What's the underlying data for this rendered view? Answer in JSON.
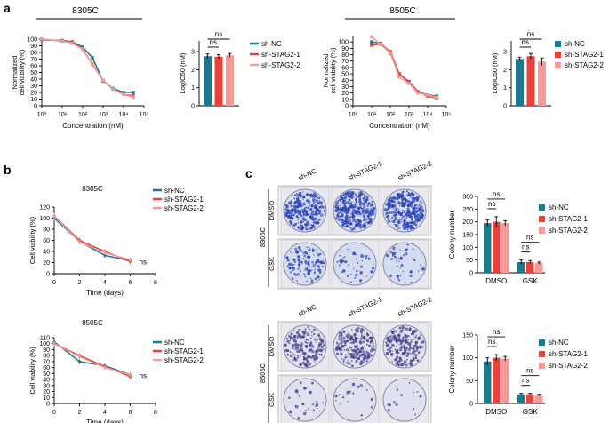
{
  "colors": {
    "nc": "#1b7a8c",
    "s1": "#e8423a",
    "s2": "#f59a96",
    "axis": "#000000",
    "plateBg": "#c9d4ec",
    "plateBg2": "#dcdcee"
  },
  "panels": {
    "a": "a",
    "b": "b",
    "c": "c"
  },
  "legend": [
    "sh-NC",
    "sh-STAG2-1",
    "sh-STAG2-2"
  ],
  "ns": "ns",
  "chart_data": [
    {
      "id": "a1",
      "type": "line",
      "title": "8305C",
      "xscale": "log",
      "xlabel": "Concentration (nM)",
      "ylabel": [
        "Normalized",
        "cell viability (%)"
      ],
      "xticks": [
        "10⁰",
        "10¹",
        "10²",
        "10³",
        "10⁴",
        "10⁵"
      ],
      "yticks": [
        0,
        10,
        20,
        30,
        40,
        50,
        60,
        70,
        80,
        90,
        100
      ],
      "ylim": [
        0,
        100
      ],
      "x": [
        1,
        10,
        30,
        100,
        300,
        1000,
        3000,
        10000,
        30000
      ],
      "series": [
        {
          "name": "sh-NC",
          "values": [
            99,
            98,
            96,
            88,
            72,
            37,
            26,
            20,
            20
          ]
        },
        {
          "name": "sh-STAG2-1",
          "values": [
            100,
            97,
            95,
            85,
            62,
            38,
            25,
            17,
            15
          ]
        },
        {
          "name": "sh-STAG2-2",
          "values": [
            100,
            97,
            94,
            85,
            63,
            38,
            25,
            17,
            13
          ]
        }
      ]
    },
    {
      "id": "a1b",
      "type": "bar",
      "ylabel": "LogIC50 (nM)",
      "yticks": [
        0,
        1,
        2,
        3
      ],
      "ylim": [
        0,
        3.6
      ],
      "categories": [
        "sh-NC",
        "sh-STAG2-1",
        "sh-STAG2-2"
      ],
      "values": [
        2.75,
        2.72,
        2.8
      ],
      "errors": [
        0.12,
        0.12,
        0.1
      ]
    },
    {
      "id": "a2",
      "type": "line",
      "title": "8505C",
      "xscale": "log",
      "xlabel": "Concentration (nM)",
      "ylabel": [
        "Normalized",
        "cell viability (%)"
      ],
      "xticks": [
        "10⁰",
        "10¹",
        "10²",
        "10³",
        "10⁴",
        "10⁵"
      ],
      "yticks": [
        0,
        10,
        20,
        30,
        40,
        50,
        60,
        70,
        80,
        90,
        100
      ],
      "ylim": [
        0,
        110
      ],
      "x": [
        10,
        30,
        100,
        300,
        1000,
        3000,
        10000,
        30000
      ],
      "series": [
        {
          "name": "sh-NC",
          "values": [
            100,
            98,
            82,
            50,
            38,
            22,
            17,
            15
          ]
        },
        {
          "name": "sh-STAG2-1",
          "values": [
            95,
            97,
            85,
            50,
            37,
            22,
            15,
            12
          ]
        },
        {
          "name": "sh-STAG2-2",
          "values": [
            108,
            96,
            83,
            45,
            35,
            20,
            17,
            13
          ]
        }
      ]
    },
    {
      "id": "a2b",
      "type": "bar",
      "ylabel": "LogIC50 (nM)",
      "yticks": [
        0,
        1,
        2,
        3
      ],
      "ylim": [
        0,
        3.6
      ],
      "categories": [
        "sh-NC",
        "sh-STAG2-1",
        "sh-STAG2-2"
      ],
      "values": [
        2.6,
        2.75,
        2.45
      ],
      "errors": [
        0.1,
        0.15,
        0.2
      ]
    },
    {
      "id": "b1",
      "type": "line",
      "title": "8305C",
      "xlabel": "Time (days)",
      "ylabel": "Cell viability (%)",
      "xticks": [
        0,
        2,
        4,
        6,
        8
      ],
      "yticks": [
        0,
        20,
        40,
        60,
        80,
        100,
        120
      ],
      "ylim": [
        0,
        120
      ],
      "xlim": [
        0,
        8
      ],
      "x": [
        0,
        2,
        4,
        6
      ],
      "series": [
        {
          "name": "sh-NC",
          "values": [
            100,
            58,
            33,
            23
          ]
        },
        {
          "name": "sh-STAG2-1",
          "values": [
            104,
            60,
            40,
            22
          ]
        },
        {
          "name": "sh-STAG2-2",
          "values": [
            104,
            57,
            38,
            25
          ]
        }
      ]
    },
    {
      "id": "b2",
      "type": "line",
      "title": "8505C",
      "xlabel": "Time (days)",
      "ylabel": "Cell viability (%)",
      "xticks": [
        0,
        2,
        4,
        6,
        8
      ],
      "yticks": [
        0,
        10,
        20,
        30,
        40,
        50,
        60,
        70,
        80,
        90,
        100,
        110
      ],
      "ylim": [
        0,
        110
      ],
      "xlim": [
        0,
        8
      ],
      "x": [
        0,
        2,
        4,
        6
      ],
      "series": [
        {
          "name": "sh-NC",
          "values": [
            103,
            70,
            63,
            48
          ]
        },
        {
          "name": "sh-STAG2-1",
          "values": [
            100,
            80,
            62,
            45
          ]
        },
        {
          "name": "sh-STAG2-2",
          "values": [
            100,
            78,
            60,
            48
          ]
        }
      ]
    },
    {
      "id": "c1",
      "type": "bar",
      "ylabel": "Colony number",
      "yticks": [
        0,
        50,
        100,
        150,
        200,
        250,
        300
      ],
      "ylim": [
        0,
        300
      ],
      "categories": [
        "DMSO",
        "GSK"
      ],
      "series": [
        {
          "name": "sh-NC",
          "values": [
            195,
            42
          ],
          "errors": [
            12,
            8
          ]
        },
        {
          "name": "sh-STAG2-1",
          "values": [
            200,
            42
          ],
          "errors": [
            20,
            6
          ]
        },
        {
          "name": "sh-STAG2-2",
          "values": [
            195,
            38
          ],
          "errors": [
            10,
            4
          ]
        }
      ]
    },
    {
      "id": "c2",
      "type": "bar",
      "ylabel": "Colony number",
      "yticks": [
        0,
        50,
        100,
        150
      ],
      "ylim": [
        0,
        150
      ],
      "categories": [
        "DMSO",
        "GSK"
      ],
      "series": [
        {
          "name": "sh-NC",
          "values": [
            92,
            20
          ],
          "errors": [
            8,
            2
          ]
        },
        {
          "name": "sh-STAG2-1",
          "values": [
            100,
            20
          ],
          "errors": [
            7,
            2
          ]
        },
        {
          "name": "sh-STAG2-2",
          "values": [
            98,
            18
          ],
          "errors": [
            5,
            2
          ]
        }
      ]
    }
  ],
  "plates": {
    "top": {
      "cell": "8305C",
      "cols": [
        "sh-NC",
        "sh-STAG2-1",
        "sh-STAG2-2"
      ],
      "rows": [
        "DMSO",
        "GSK"
      ]
    },
    "bottom": {
      "cell": "8505C",
      "cols": [
        "sh-NC",
        "sh-STAG2-1",
        "sh-STAG2-2"
      ],
      "rows": [
        "DMSO",
        "GSK"
      ]
    }
  }
}
